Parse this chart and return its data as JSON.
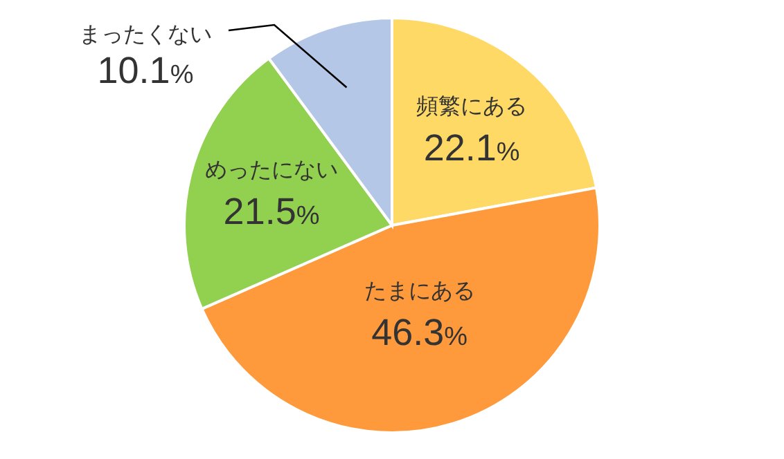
{
  "chart_data": {
    "type": "pie",
    "categories": [
      "頻繁にある",
      "たまにある",
      "めったにない",
      "まったくない"
    ],
    "values": [
      22.1,
      46.3,
      21.5,
      10.1
    ],
    "colors": [
      "#ffd966",
      "#ff9a3c",
      "#92d050",
      "#b4c7e7"
    ],
    "value_labels": [
      "22.1%",
      "46.3%",
      "21.5%",
      "10.1%"
    ]
  }
}
